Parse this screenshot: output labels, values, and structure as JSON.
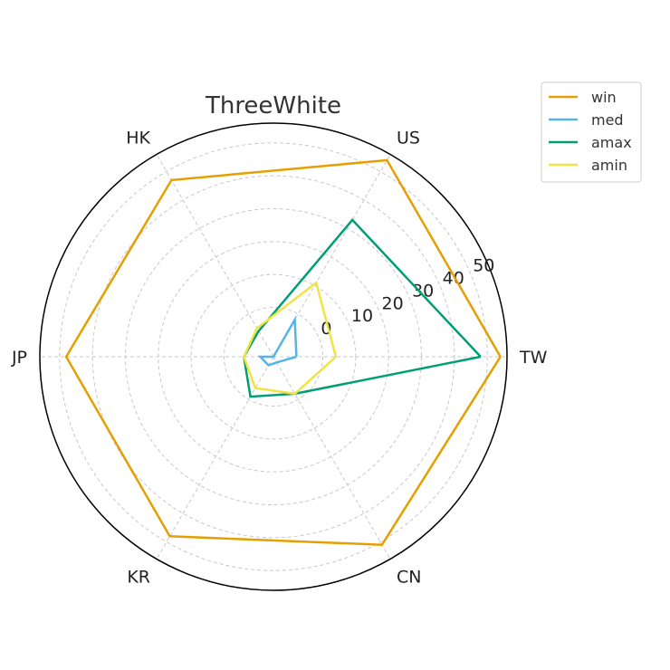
{
  "chart_data": {
    "type": "radar",
    "title": "ThreeWhite",
    "categories": [
      "TW",
      "US",
      "HK",
      "JP",
      "KR",
      "CN"
    ],
    "radial_ticks": [
      0,
      10,
      20,
      30,
      40,
      50
    ],
    "rlim": [
      -15,
      56
    ],
    "grid": true,
    "legend_position": "top-right, outside plot",
    "series": [
      {
        "name": "win",
        "color": "#E69F00",
        "values": [
          54,
          54,
          47,
          48,
          48,
          51
        ]
      },
      {
        "name": "med",
        "color": "#56B4E9",
        "values": [
          -8,
          -2,
          -15,
          -11,
          -12,
          -13
        ]
      },
      {
        "name": "amax",
        "color": "#009E73",
        "values": [
          48,
          33,
          -6,
          -6,
          -1,
          -2
        ]
      },
      {
        "name": "amin",
        "color": "#F0E442",
        "values": [
          4,
          11,
          -5,
          -6,
          -4,
          -2
        ]
      }
    ]
  }
}
